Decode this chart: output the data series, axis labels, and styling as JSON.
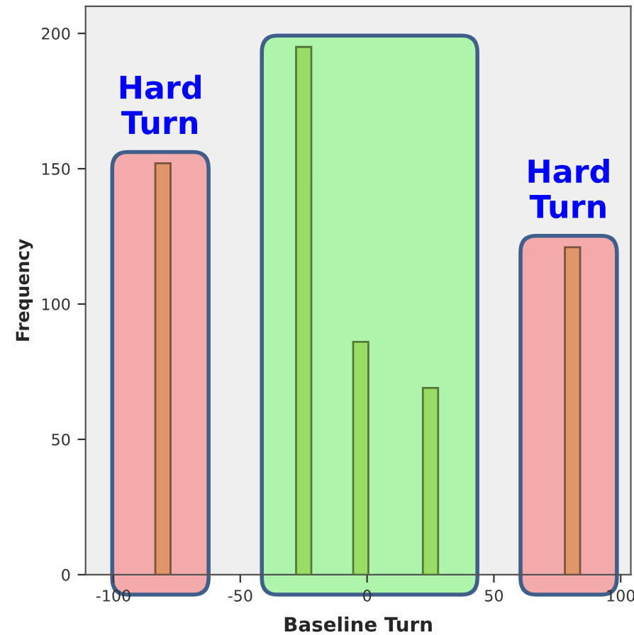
{
  "chart_data": {
    "type": "bar",
    "xlabel": "Baseline Turn",
    "ylabel": "Frequency",
    "x": [
      -80.5,
      -25,
      -2.5,
      25,
      81
    ],
    "values": [
      152,
      195,
      86,
      69,
      121
    ],
    "colors": [
      "#e0956a",
      "#99dd66",
      "#99dd66",
      "#99dd66",
      "#e0956a"
    ],
    "xlim": [
      -111,
      104
    ],
    "xticks": [
      -100,
      -50,
      0,
      50,
      100
    ],
    "ylim": [
      0,
      210
    ],
    "yticks": [
      0,
      50,
      100,
      150,
      200
    ],
    "bands": [
      {
        "axis": "x",
        "from": -100.5,
        "to": -62.5,
        "label": "Hard Turn",
        "color": "#f4aaaa"
      },
      {
        "axis": "x",
        "from": -41.5,
        "to": 43.5,
        "color": "#aef4aa"
      },
      {
        "axis": "x",
        "from": 60.5,
        "to": 98.5,
        "label": "Hard Turn",
        "color": "#f4aaaa"
      }
    ],
    "grid": false,
    "legend": false
  }
}
